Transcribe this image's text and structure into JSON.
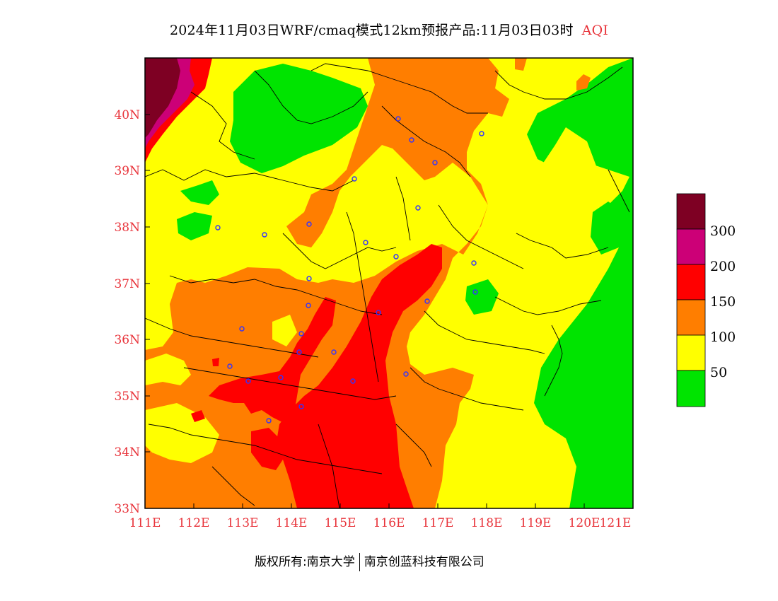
{
  "title": {
    "main": "2024年11月03日WRF/cmaq模式12km预报产品:11月03日03时",
    "variable": "AQI"
  },
  "colors": {
    "green": "#00e400",
    "yellow": "#ffff00",
    "orange": "#ff7e00",
    "red": "#ff0000",
    "purple": "#cc0077",
    "maroon": "#7e0023",
    "axis_label": "#e8333a",
    "station": "#3333ff"
  },
  "axes": {
    "lon_labels": [
      "111E",
      "112E",
      "113E",
      "114E",
      "115E",
      "116E",
      "117E",
      "118E",
      "119E",
      "120E",
      "121E"
    ],
    "lat_labels": [
      "33N",
      "34N",
      "35N",
      "36N",
      "37N",
      "38N",
      "39N",
      "40N"
    ]
  },
  "legend": {
    "labels": [
      "50",
      "100",
      "150",
      "200",
      "300"
    ]
  },
  "footer": {
    "left": "版权所有:南京大学",
    "right": "南京创蓝科技有限公司"
  }
}
